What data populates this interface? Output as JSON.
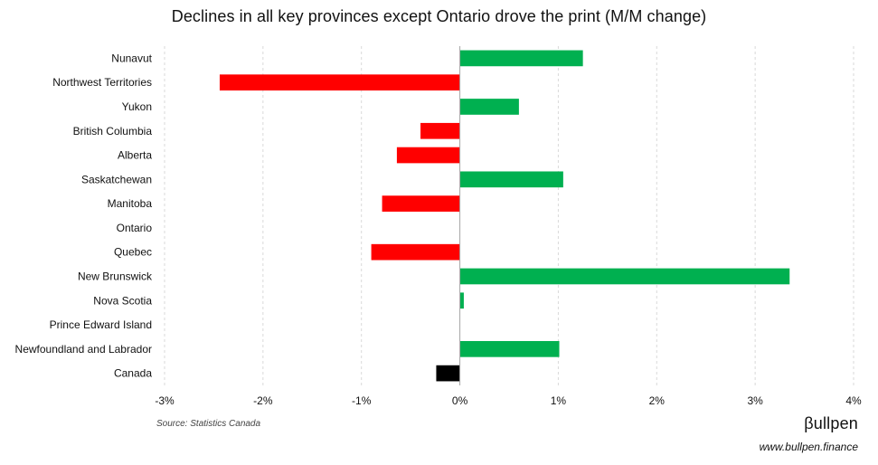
{
  "chart_data": {
    "type": "bar",
    "orientation": "horizontal",
    "title": "Declines in all key provinces except Ontario drove the print (M/M change)",
    "categories": [
      "Nunavut",
      "Northwest Territories",
      "Yukon",
      "British Columbia",
      "Alberta",
      "Saskatchewan",
      "Manitoba",
      "Ontario",
      "Quebec",
      "New Brunswick",
      "Nova Scotia",
      "Prince Edward Island",
      "Newfoundland and Labrador",
      "Canada"
    ],
    "values": [
      1.25,
      -2.44,
      0.6,
      -0.4,
      -0.64,
      1.05,
      -0.79,
      0.0,
      -0.9,
      3.35,
      0.04,
      0.0,
      1.01,
      -0.24
    ],
    "xlim": [
      -3,
      4
    ],
    "xticks": [
      -3,
      -2,
      -1,
      0,
      1,
      2,
      3,
      4
    ],
    "tick_labels": [
      "-3%",
      "-2%",
      "-1%",
      "0%",
      "1%",
      "2%",
      "3%",
      "4%"
    ],
    "xlabel": "",
    "ylabel": "",
    "grid": "vertical dashed",
    "colors": {
      "positive": "#00b050",
      "negative": "#ff0000",
      "aggregate": "#000000",
      "grid": "#d9d9d9",
      "axis": "#a6a6a6"
    }
  },
  "footer": {
    "source": "Source: Statistics Canada",
    "brand": "βullpen",
    "website": "www.bullpen.finance"
  }
}
